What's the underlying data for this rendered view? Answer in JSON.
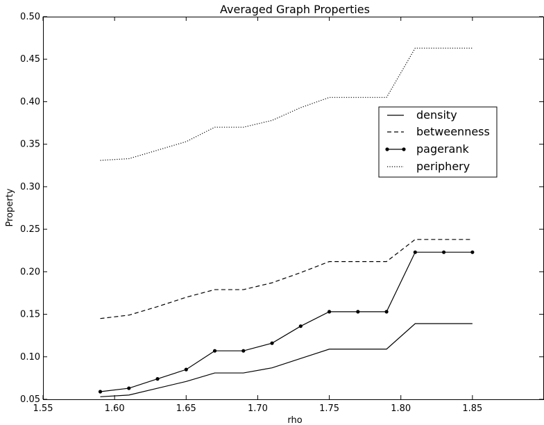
{
  "chart_data": {
    "type": "line",
    "title": "Averaged Graph Properties",
    "xlabel": "rho",
    "ylabel": "Property",
    "xlim": [
      1.55,
      1.9
    ],
    "ylim": [
      0.05,
      0.5
    ],
    "xticks": [
      "1.55",
      "1.60",
      "1.65",
      "1.70",
      "1.75",
      "1.80",
      "1.85"
    ],
    "xtick_values": [
      1.55,
      1.6,
      1.65,
      1.7,
      1.75,
      1.8,
      1.85
    ],
    "yticks": [
      "0.05",
      "0.10",
      "0.15",
      "0.20",
      "0.25",
      "0.30",
      "0.35",
      "0.40",
      "0.45",
      "0.50"
    ],
    "ytick_values": [
      0.05,
      0.1,
      0.15,
      0.2,
      0.25,
      0.3,
      0.35,
      0.4,
      0.45,
      0.5
    ],
    "grid": false,
    "legend_placement": "center-right",
    "x": [
      1.59,
      1.61,
      1.63,
      1.65,
      1.67,
      1.69,
      1.71,
      1.73,
      1.75,
      1.77,
      1.79,
      1.81,
      1.83,
      1.85
    ],
    "series": [
      {
        "name": "density",
        "style": "solid",
        "color": "#000000",
        "values": [
          0.053,
          0.055,
          0.063,
          0.071,
          0.081,
          0.081,
          0.087,
          0.098,
          0.109,
          0.109,
          0.109,
          0.139,
          0.139,
          0.139
        ]
      },
      {
        "name": "betweenness",
        "style": "dashed",
        "color": "#000000",
        "values": [
          0.145,
          0.149,
          0.159,
          0.17,
          0.179,
          0.179,
          0.187,
          0.199,
          0.212,
          0.212,
          0.212,
          0.238,
          0.238,
          0.238
        ]
      },
      {
        "name": "pagerank",
        "style": "solid-dots",
        "color": "#000000",
        "values": [
          0.059,
          0.063,
          0.074,
          0.085,
          0.107,
          0.107,
          0.116,
          0.136,
          0.153,
          0.153,
          0.153,
          0.223,
          0.223,
          0.223
        ]
      },
      {
        "name": "periphery",
        "style": "dotted",
        "color": "#000000",
        "values": [
          0.331,
          0.333,
          0.343,
          0.353,
          0.37,
          0.37,
          0.378,
          0.393,
          0.405,
          0.405,
          0.405,
          0.463,
          0.463,
          0.463
        ]
      }
    ]
  }
}
